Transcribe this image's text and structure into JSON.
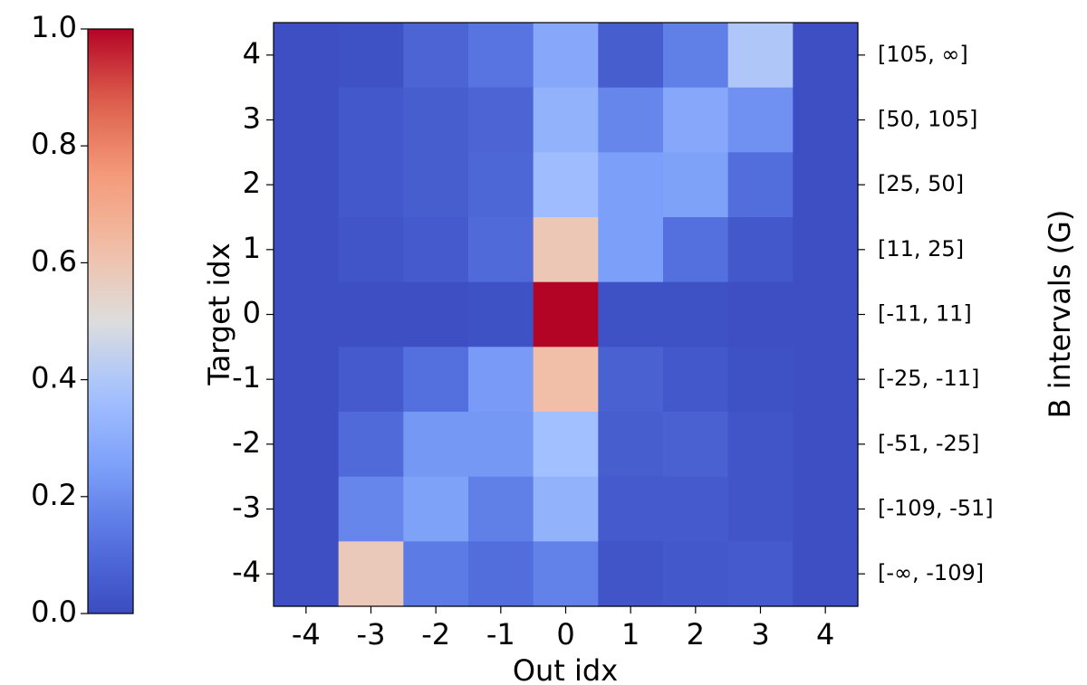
{
  "chart_data": {
    "type": "heatmap",
    "xlabel": "Out idx",
    "ylabel": "Target idx",
    "right_ylabel": "B intervals (G)",
    "x_categories": [
      "-4",
      "-3",
      "-2",
      "-1",
      "0",
      "1",
      "2",
      "3",
      "4"
    ],
    "y_categories": [
      "4",
      "3",
      "2",
      "1",
      "0",
      "-1",
      "-2",
      "-3",
      "-4"
    ],
    "right_tick_labels": [
      "[105, ∞]",
      "[50, 105]",
      "[25, 50]",
      "[11, 25]",
      "[-11, 11]",
      "[-25, -11]",
      "[-51, -25]",
      "[-109, -51]",
      "[-∞, -109]"
    ],
    "values": [
      [
        0.01,
        0.02,
        0.08,
        0.13,
        0.28,
        0.06,
        0.16,
        0.4,
        0.01
      ],
      [
        0.01,
        0.04,
        0.06,
        0.08,
        0.32,
        0.18,
        0.28,
        0.21,
        0.01
      ],
      [
        0.01,
        0.04,
        0.06,
        0.09,
        0.36,
        0.25,
        0.26,
        0.11,
        0.01
      ],
      [
        0.01,
        0.03,
        0.05,
        0.1,
        0.59,
        0.25,
        0.12,
        0.04,
        0.01
      ],
      [
        0.01,
        0.01,
        0.01,
        0.02,
        1.0,
        0.02,
        0.02,
        0.01,
        0.01
      ],
      [
        0.01,
        0.05,
        0.12,
        0.24,
        0.62,
        0.07,
        0.04,
        0.02,
        0.01
      ],
      [
        0.01,
        0.1,
        0.23,
        0.23,
        0.37,
        0.06,
        0.07,
        0.03,
        0.01
      ],
      [
        0.01,
        0.18,
        0.26,
        0.16,
        0.32,
        0.05,
        0.05,
        0.03,
        0.01
      ],
      [
        0.01,
        0.58,
        0.15,
        0.11,
        0.17,
        0.03,
        0.04,
        0.05,
        0.01
      ]
    ],
    "colorbar": {
      "colormap": "coolwarm",
      "range": [
        0.0,
        1.0
      ],
      "tick_labels": [
        "0.0",
        "0.2",
        "0.4",
        "0.6",
        "0.8",
        "1.0"
      ],
      "tick_values": [
        0.0,
        0.2,
        0.4,
        0.6,
        0.8,
        1.0
      ]
    }
  }
}
